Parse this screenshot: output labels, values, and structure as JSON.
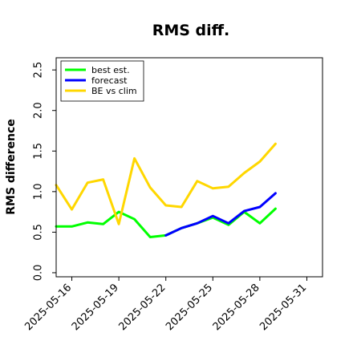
{
  "chart_data": {
    "type": "line",
    "title": "RMS diff.",
    "xlabel": "",
    "ylabel": "RMS difference",
    "ylim": [
      -0.05,
      2.65
    ],
    "yticks": [
      "0.0",
      "0.5",
      "1.0",
      "1.5",
      "2.0",
      "2.5"
    ],
    "xticks": [
      "2025-05-16",
      "2025-05-19",
      "2025-05-22",
      "2025-05-25",
      "2025-05-28",
      "2025-05-31"
    ],
    "highlight_tick": "2025-05-22",
    "highlight_color": "#228B22",
    "xlim": [
      "2025-05-15",
      "2025-06-01"
    ],
    "legend_position": "upper left",
    "grid": false,
    "series": [
      {
        "name": "best est.",
        "color": "#00ff00",
        "x": [
          "2025-05-15",
          "2025-05-16",
          "2025-05-17",
          "2025-05-18",
          "2025-05-19",
          "2025-05-20",
          "2025-05-21",
          "2025-05-22",
          "2025-05-23",
          "2025-05-24",
          "2025-05-25",
          "2025-05-26",
          "2025-05-27",
          "2025-05-28",
          "2025-05-29"
        ],
        "values": [
          0.57,
          0.57,
          0.62,
          0.6,
          0.75,
          0.66,
          0.44,
          0.46,
          0.55,
          0.61,
          0.68,
          0.59,
          0.75,
          0.61,
          0.79
        ]
      },
      {
        "name": "forecast",
        "color": "#0000ff",
        "x": [
          "2025-05-22",
          "2025-05-23",
          "2025-05-24",
          "2025-05-25",
          "2025-05-26",
          "2025-05-27",
          "2025-05-28",
          "2025-05-29"
        ],
        "values": [
          0.46,
          0.55,
          0.61,
          0.7,
          0.61,
          0.76,
          0.81,
          0.98
        ]
      },
      {
        "name": "BE vs clim",
        "color": "#ffd700",
        "x": [
          "2025-05-15",
          "2025-05-16",
          "2025-05-17",
          "2025-05-18",
          "2025-05-19",
          "2025-05-20",
          "2025-05-21",
          "2025-05-22",
          "2025-05-23",
          "2025-05-24",
          "2025-05-25",
          "2025-05-26",
          "2025-05-27",
          "2025-05-28",
          "2025-05-29"
        ],
        "values": [
          1.08,
          0.78,
          1.11,
          1.15,
          0.6,
          1.41,
          1.05,
          0.83,
          0.81,
          1.13,
          1.04,
          1.06,
          1.23,
          1.37,
          1.59
        ]
      }
    ]
  }
}
